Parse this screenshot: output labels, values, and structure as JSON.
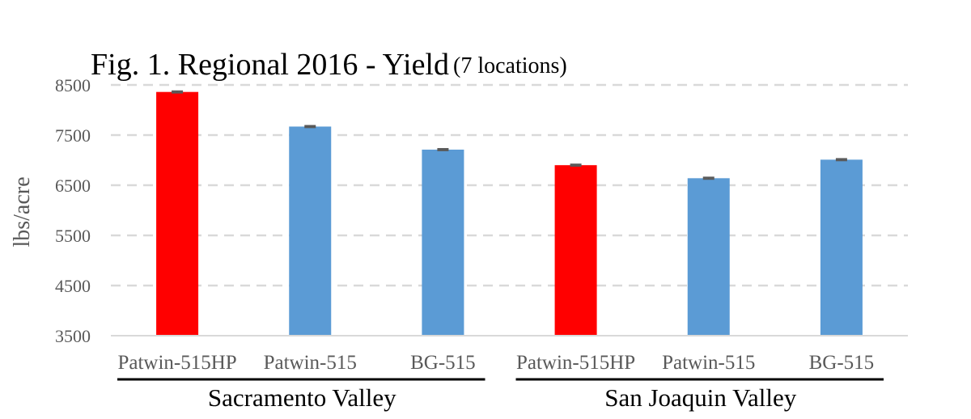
{
  "chart_data": {
    "type": "bar",
    "title": "Fig. 1. Regional 2016 - Yield",
    "subtitle": "(7 locations)",
    "ylabel": "lbs/acre",
    "xlabel": "",
    "ylim": [
      3500,
      8500
    ],
    "yticks": [
      3500,
      4500,
      5500,
      6500,
      7500,
      8500
    ],
    "grid": true,
    "groups": [
      {
        "name": "Sacramento Valley",
        "categories": [
          "Patwin-515HP",
          "Patwin-515",
          "BG-515"
        ]
      },
      {
        "name": "San Joaquin Valley",
        "categories": [
          "Patwin-515HP",
          "Patwin-515",
          "BG-515"
        ]
      }
    ],
    "categories": [
      "Patwin-515HP",
      "Patwin-515",
      "BG-515",
      "Patwin-515HP",
      "Patwin-515",
      "BG-515"
    ],
    "values": [
      8360,
      7670,
      7210,
      6900,
      6640,
      7010
    ],
    "errors": [
      15,
      15,
      15,
      15,
      15,
      15
    ],
    "colors": [
      "#ff0000",
      "#5b9bd5",
      "#5b9bd5",
      "#ff0000",
      "#5b9bd5",
      "#5b9bd5"
    ],
    "error_color": "#595959",
    "grid_color": "#d9d9d9"
  }
}
